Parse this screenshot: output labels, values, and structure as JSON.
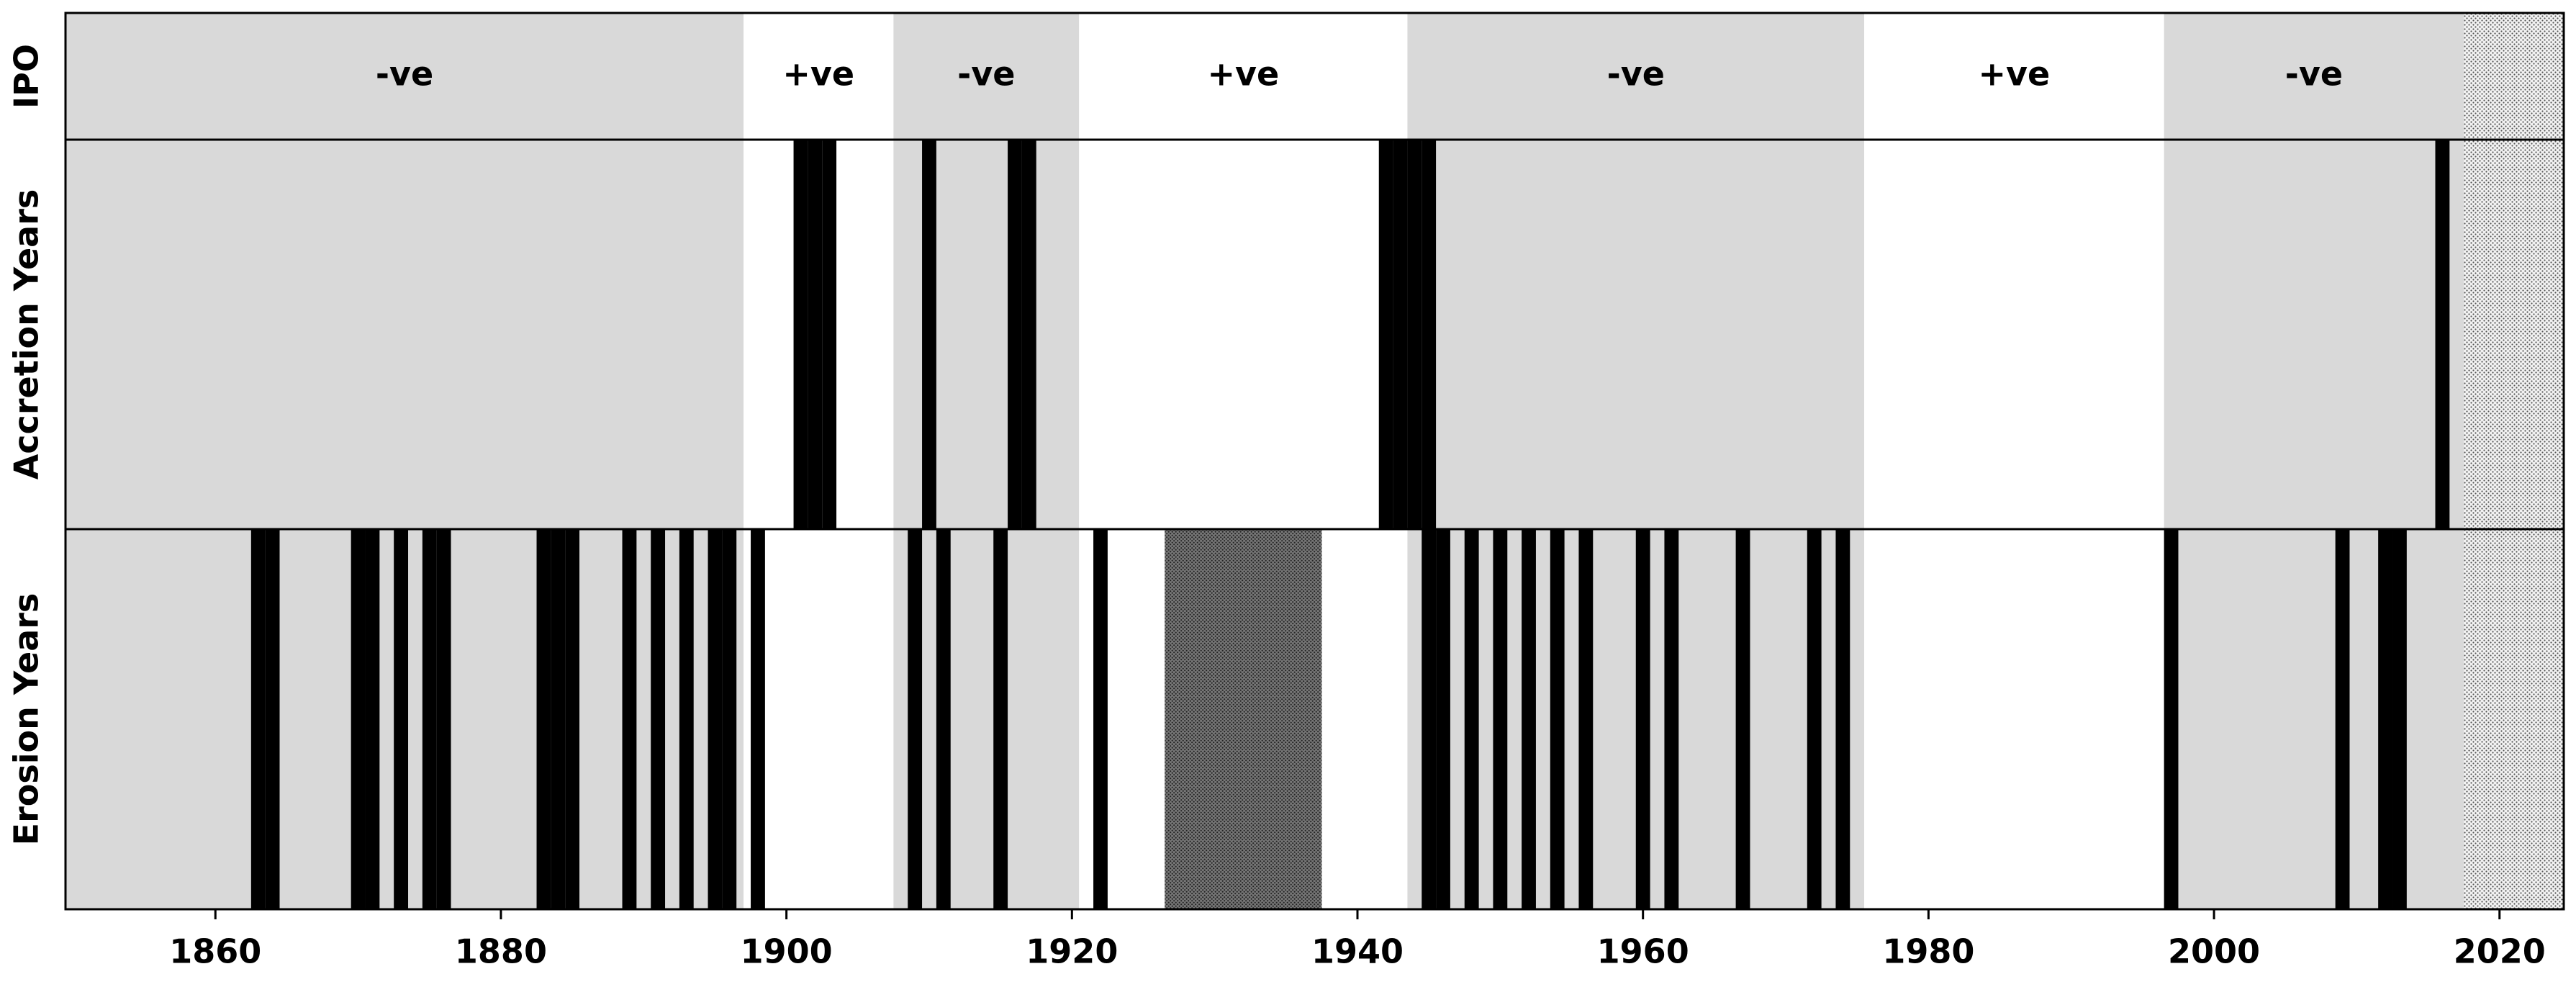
{
  "chart_data": {
    "type": "timeline",
    "xlim": [
      1849.5,
      2024.5
    ],
    "xticks": [
      1860,
      1880,
      1900,
      1920,
      1940,
      1960,
      1980,
      2000,
      2020
    ],
    "phases": [
      {
        "label": "-ve",
        "start": 1849.5,
        "end": 1897,
        "color": "#d9d9d9"
      },
      {
        "label": "+ve",
        "start": 1897,
        "end": 1907.5,
        "color": "#ffffff"
      },
      {
        "label": "-ve",
        "start": 1907.5,
        "end": 1920.5,
        "color": "#d9d9d9"
      },
      {
        "label": "+ve",
        "start": 1920.5,
        "end": 1943.5,
        "color": "#ffffff"
      },
      {
        "label": "-ve",
        "start": 1943.5,
        "end": 1975.5,
        "color": "#d9d9d9"
      },
      {
        "label": "+ve",
        "start": 1975.5,
        "end": 1996.5,
        "color": "#ffffff"
      },
      {
        "label": "-ve",
        "start": 1996.5,
        "end": 2017.5,
        "color": "#d9d9d9"
      }
    ],
    "no_data": [
      2017.5,
      2024.5
    ],
    "rows": [
      {
        "name": "IPO"
      },
      {
        "name": "Accretion Years",
        "color": "#000000",
        "years": [
          1901,
          1902,
          1903,
          1910,
          1916,
          1917,
          1942,
          1943,
          1944,
          1945,
          2016
        ]
      },
      {
        "name": "Erosion Years",
        "color": "#000000",
        "years": [
          1863,
          1864,
          1870,
          1871,
          1873,
          1875,
          1876,
          1883,
          1884,
          1885,
          1889,
          1891,
          1893,
          1895,
          1896,
          1898,
          1909,
          1911,
          1915,
          1922,
          1945,
          1946,
          1948,
          1950,
          1952,
          1954,
          1956,
          1960,
          1962,
          1967,
          1972,
          1974,
          1997,
          2009,
          2012,
          2013
        ],
        "gap": [
          1926.5,
          1937.5
        ]
      }
    ]
  }
}
